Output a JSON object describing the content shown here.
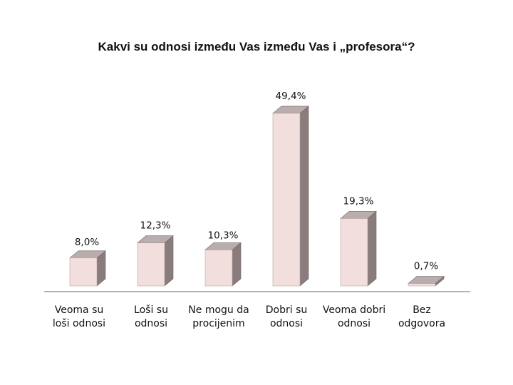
{
  "chart_data": {
    "type": "bar",
    "title": "Kakvi su odnosi između Vas između Vas i „profesora“?",
    "categories": [
      [
        "Veoma su",
        "loši odnosi"
      ],
      [
        "Loši su",
        "odnosi"
      ],
      [
        "Ne mogu da",
        "procijenim"
      ],
      [
        "Dobri su",
        "odnosi"
      ],
      [
        "Veoma dobri",
        "odnosi"
      ],
      [
        "Bez",
        "odgovora"
      ]
    ],
    "values": [
      8.0,
      12.3,
      10.3,
      49.4,
      19.3,
      0.7
    ],
    "value_labels": [
      "8,0%",
      "12,3%",
      "10,3%",
      "49,4%",
      "19,3%",
      "0,7%"
    ],
    "unit": "%",
    "ylim": [
      0,
      50
    ],
    "grid": false,
    "legend": "none",
    "colors": {
      "bar_front": "#f1dedd",
      "bar_side": "#8a7c7c",
      "bar_top": "#b9adad",
      "axis": "#999999"
    }
  }
}
